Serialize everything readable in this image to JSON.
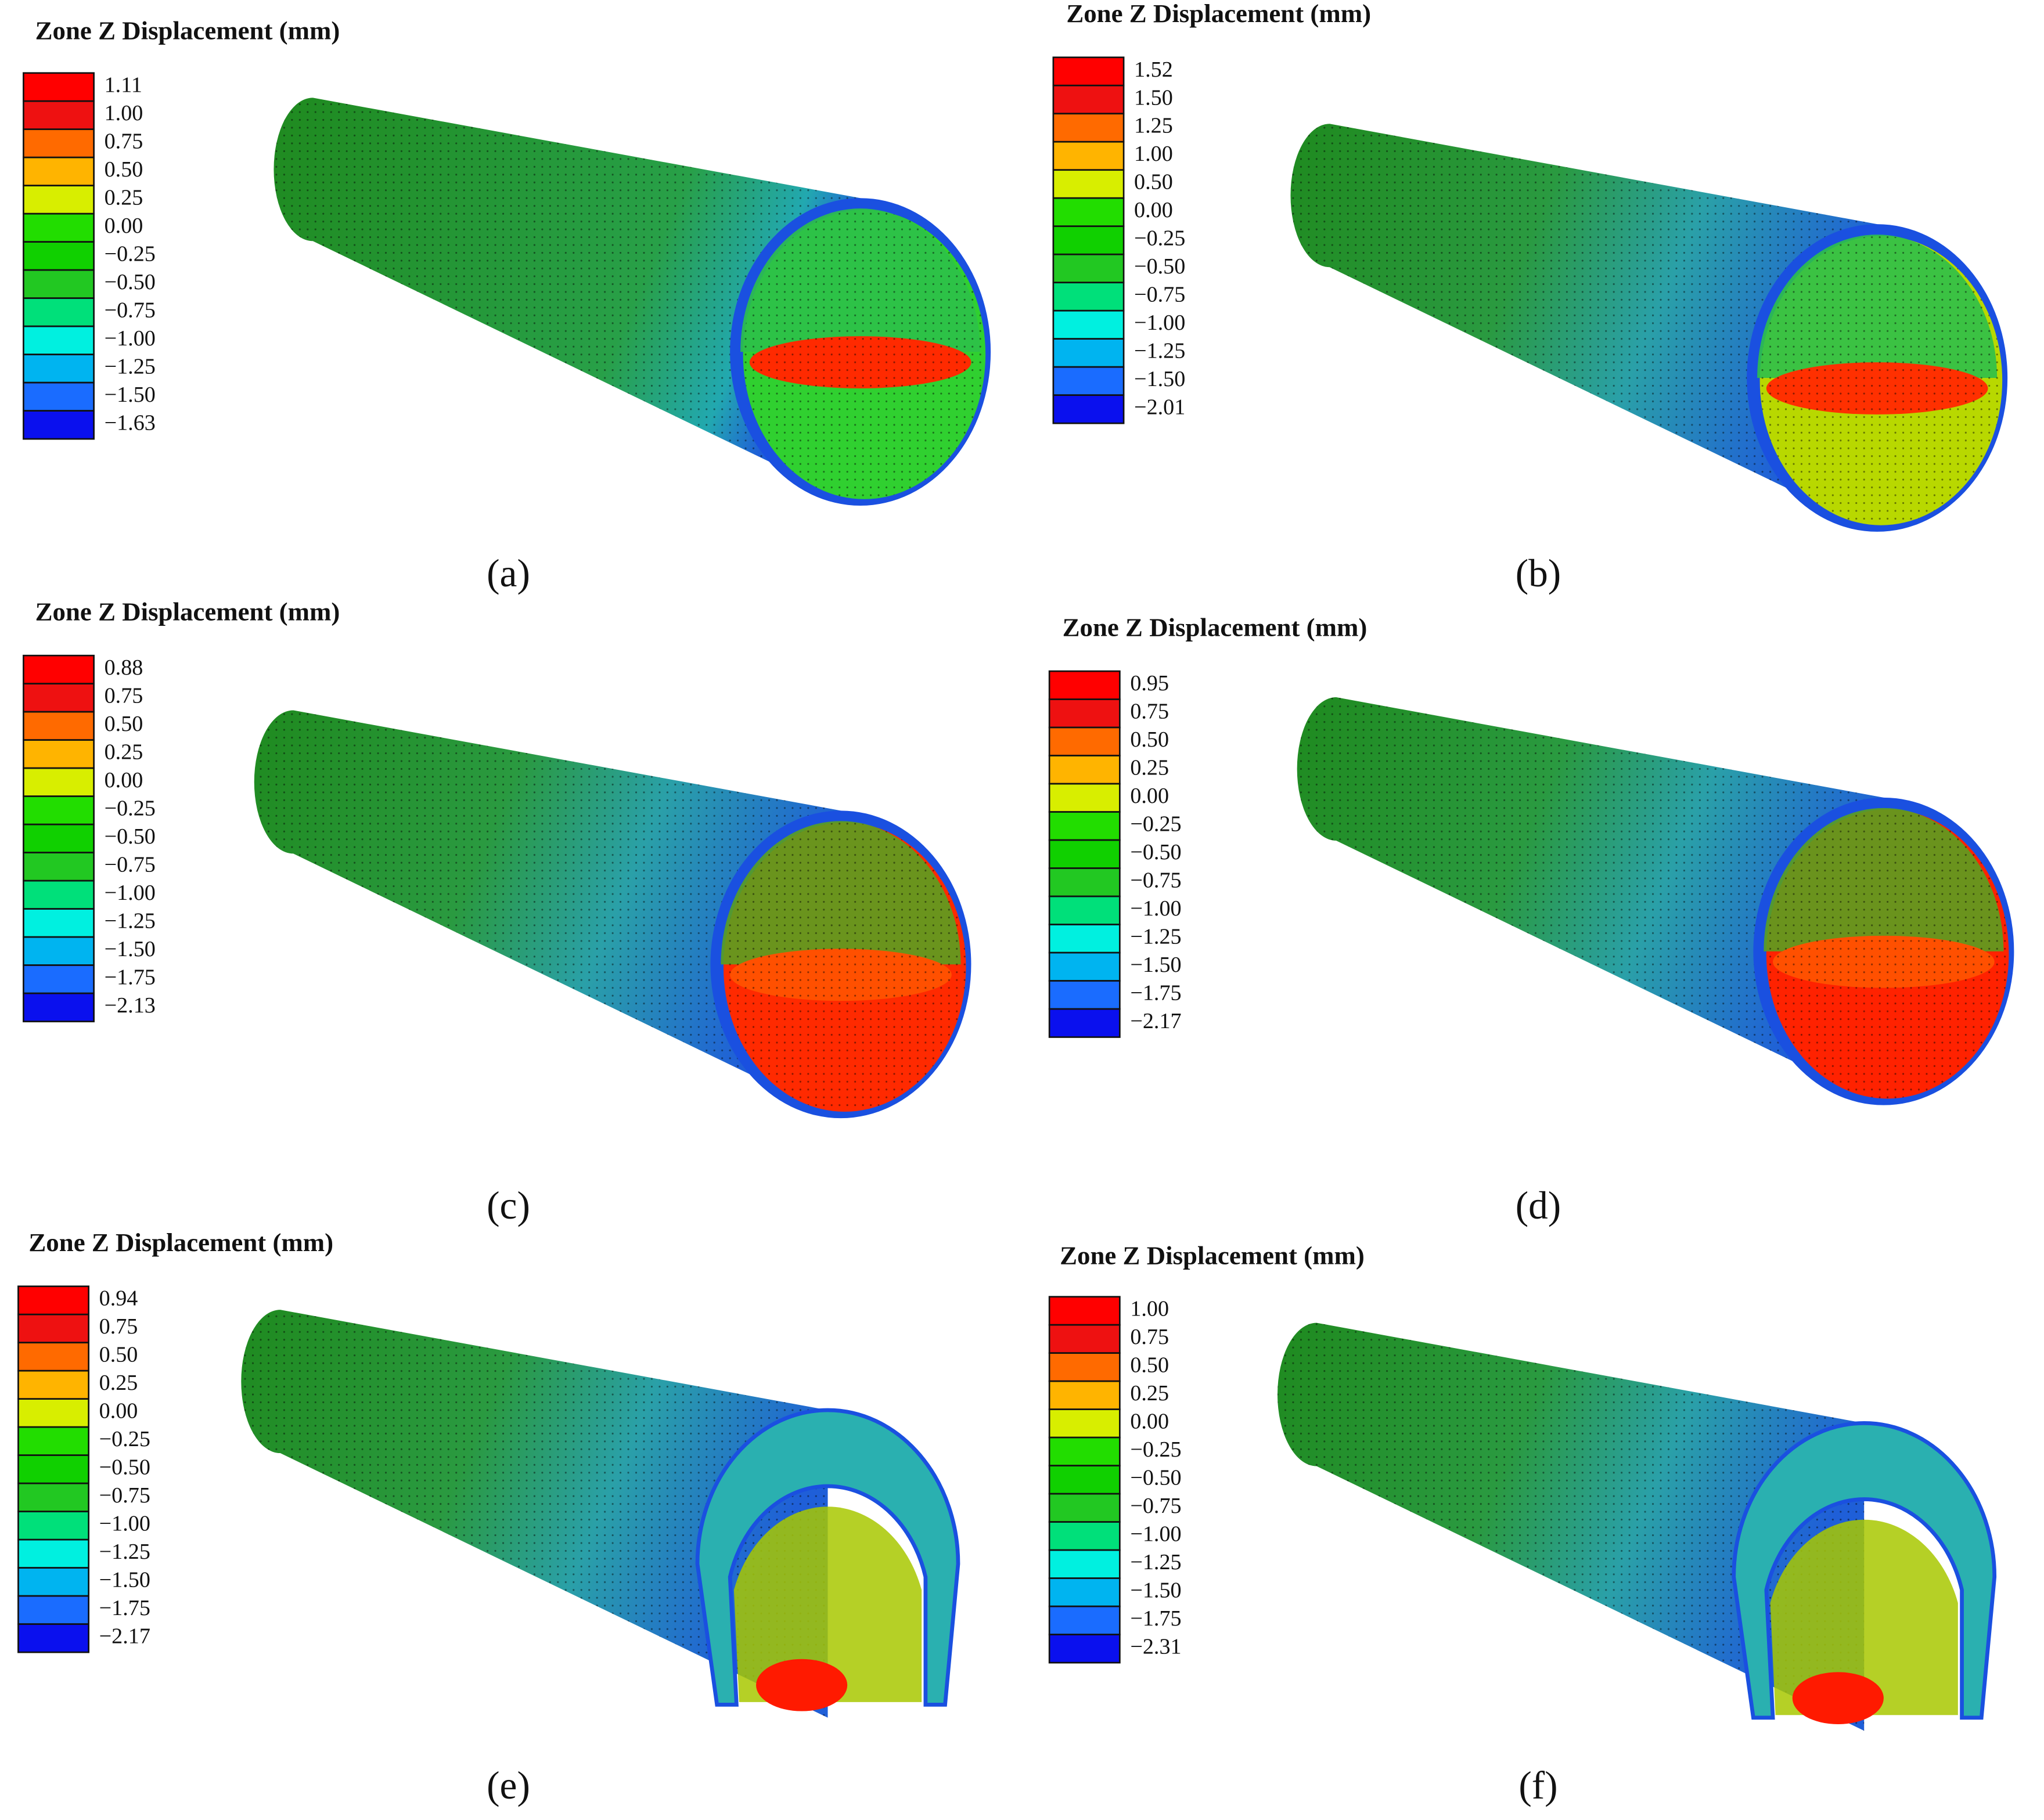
{
  "legend_colors": [
    "#ff0000",
    "#ee1111",
    "#ff6a00",
    "#ffb400",
    "#d8ee00",
    "#22dd00",
    "#10d000",
    "#22c822",
    "#00e07a",
    "#00f0e0",
    "#00b4f0",
    "#1a6cff",
    "#0a10ee"
  ],
  "panels": [
    {
      "title": "Zone Z Displacement (mm)",
      "labels": [
        "1.11",
        "1.00",
        "0.75",
        "0.50",
        "0.25",
        "0.00",
        "−0.25",
        "−0.50",
        "−0.75",
        "−1.00",
        "−1.25",
        "−1.50",
        "−1.63"
      ],
      "caption": "(a)"
    },
    {
      "title": "Zone Z Displacement (mm)",
      "labels": [
        "1.52",
        "1.50",
        "1.25",
        "1.00",
        "0.50",
        "0.00",
        "−0.25",
        "−0.50",
        "−0.75",
        "−1.00",
        "−1.25",
        "−1.50",
        "−2.01"
      ],
      "caption": "(b)"
    },
    {
      "title": "Zone Z Displacement (mm)",
      "labels": [
        "0.88",
        "0.75",
        "0.50",
        "0.25",
        "0.00",
        "−0.25",
        "−0.50",
        "−0.75",
        "−1.00",
        "−1.25",
        "−1.50",
        "−1.75",
        "−2.13"
      ],
      "caption": "(c)"
    },
    {
      "title": "Zone Z Displacement (mm)",
      "labels": [
        "0.95",
        "0.75",
        "0.50",
        "0.25",
        "0.00",
        "−0.25",
        "−0.50",
        "−0.75",
        "−1.00",
        "−1.25",
        "−1.50",
        "−1.75",
        "−2.17"
      ],
      "caption": "(d)"
    },
    {
      "title": "Zone Z Displacement (mm)",
      "labels": [
        "0.94",
        "0.75",
        "0.50",
        "0.25",
        "0.00",
        "−0.25",
        "−0.50",
        "−0.75",
        "−1.00",
        "−1.25",
        "−1.50",
        "−1.75",
        "−2.17"
      ],
      "caption": "(e)"
    },
    {
      "title": "Zone Z Displacement (mm)",
      "labels": [
        "1.00",
        "0.75",
        "0.50",
        "0.25",
        "0.00",
        "−0.25",
        "−0.50",
        "−0.75",
        "−1.00",
        "−1.25",
        "−1.50",
        "−1.75",
        "−2.31"
      ],
      "caption": "(f)"
    }
  ]
}
